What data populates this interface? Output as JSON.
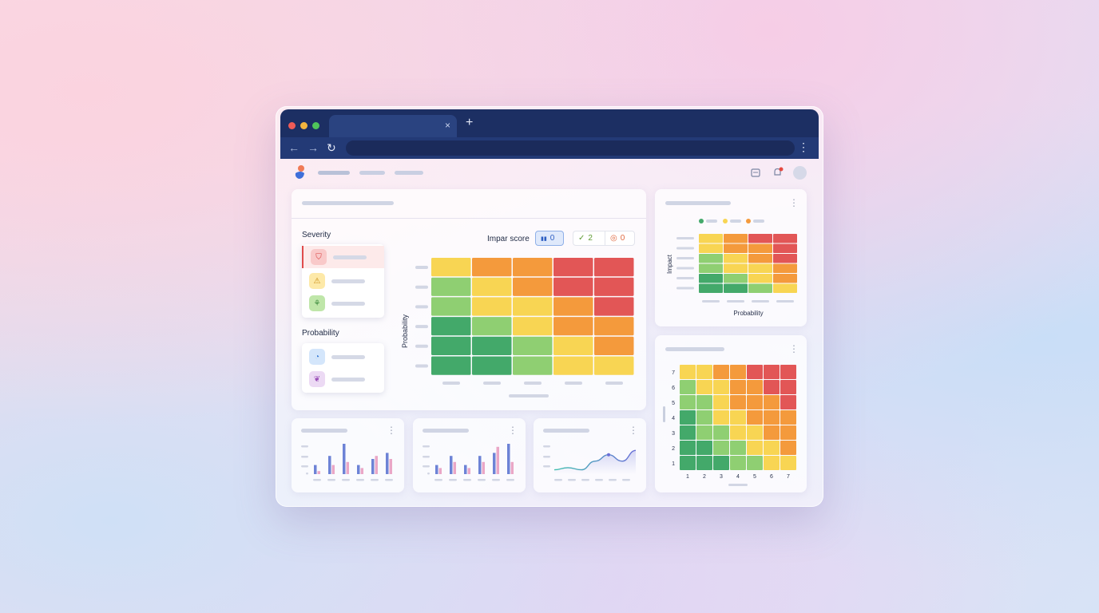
{
  "colors": {
    "dark_green": "#43a96a",
    "light_green": "#8fcf72",
    "yellow": "#f8d553",
    "orange": "#f49a3c",
    "red": "#e25656",
    "browser_bar": "#1c2f63"
  },
  "browser": {
    "tab_close": "×",
    "new_tab": "+",
    "back_icon": "←",
    "forward_icon": "→",
    "reload_icon": "↻",
    "menu_icon": "⋮"
  },
  "main_card": {
    "severity_heading": "Severity",
    "probability_heading": "Probability",
    "score_label": "Impar score",
    "chips": [
      {
        "icon": "bar-chart-icon",
        "glyph": "▮▮",
        "value": "0"
      },
      {
        "icon": "check-circle-icon",
        "glyph": "✓",
        "value": "2"
      },
      {
        "icon": "target-icon",
        "glyph": "◎",
        "value": "0"
      }
    ],
    "severity_items": [
      {
        "icon": "shield-icon",
        "glyph": "⛉"
      },
      {
        "icon": "warning-icon",
        "glyph": "⚠"
      },
      {
        "icon": "sprout-icon",
        "glyph": "⚘"
      }
    ],
    "probability_items": [
      {
        "icon": "gauge-icon",
        "glyph": "◔"
      },
      {
        "icon": "brain-icon",
        "glyph": "❦"
      }
    ],
    "y_axis_label": "Probability"
  },
  "small_matrix_card": {
    "y_axis_label": "Impact",
    "x_axis_label": "Probability"
  },
  "numbered_matrix": {
    "row_labels": [
      "7",
      "6",
      "5",
      "4",
      "3",
      "2",
      "1"
    ],
    "col_labels": [
      "1",
      "2",
      "3",
      "4",
      "5",
      "6",
      "7"
    ]
  },
  "matrices": {
    "main": [
      [
        "Y",
        "O",
        "O",
        "R",
        "R"
      ],
      [
        "L",
        "Y",
        "O",
        "R",
        "R"
      ],
      [
        "L",
        "Y",
        "Y",
        "O",
        "R"
      ],
      [
        "G",
        "L",
        "Y",
        "O",
        "O"
      ],
      [
        "G",
        "G",
        "L",
        "Y",
        "O"
      ],
      [
        "G",
        "G",
        "L",
        "Y",
        "Y"
      ]
    ],
    "small": [
      [
        "Y",
        "O",
        "R",
        "R"
      ],
      [
        "Y",
        "O",
        "O",
        "R"
      ],
      [
        "L",
        "Y",
        "O",
        "R"
      ],
      [
        "L",
        "Y",
        "Y",
        "O"
      ],
      [
        "G",
        "L",
        "Y",
        "O"
      ],
      [
        "G",
        "G",
        "L",
        "Y"
      ]
    ],
    "numbered": [
      [
        "Y",
        "Y",
        "O",
        "O",
        "R",
        "R",
        "R"
      ],
      [
        "L",
        "Y",
        "Y",
        "O",
        "O",
        "R",
        "R"
      ],
      [
        "L",
        "L",
        "Y",
        "O",
        "O",
        "O",
        "R"
      ],
      [
        "G",
        "L",
        "Y",
        "Y",
        "O",
        "O",
        "O"
      ],
      [
        "G",
        "L",
        "L",
        "Y",
        "Y",
        "O",
        "O"
      ],
      [
        "G",
        "G",
        "L",
        "L",
        "Y",
        "Y",
        "O"
      ],
      [
        "G",
        "G",
        "G",
        "L",
        "L",
        "Y",
        "Y"
      ]
    ]
  },
  "mini_charts": {
    "bars_1": {
      "blue": [
        3,
        6,
        10,
        3,
        5,
        7
      ],
      "pink": [
        1,
        3,
        4,
        2,
        6,
        5
      ]
    },
    "bars_2": {
      "blue": [
        3,
        6,
        3,
        6,
        7,
        10
      ],
      "pink": [
        2,
        4,
        2,
        4,
        9,
        4
      ]
    },
    "line_3": [
      2,
      3,
      2,
      6,
      9,
      6,
      11
    ]
  }
}
